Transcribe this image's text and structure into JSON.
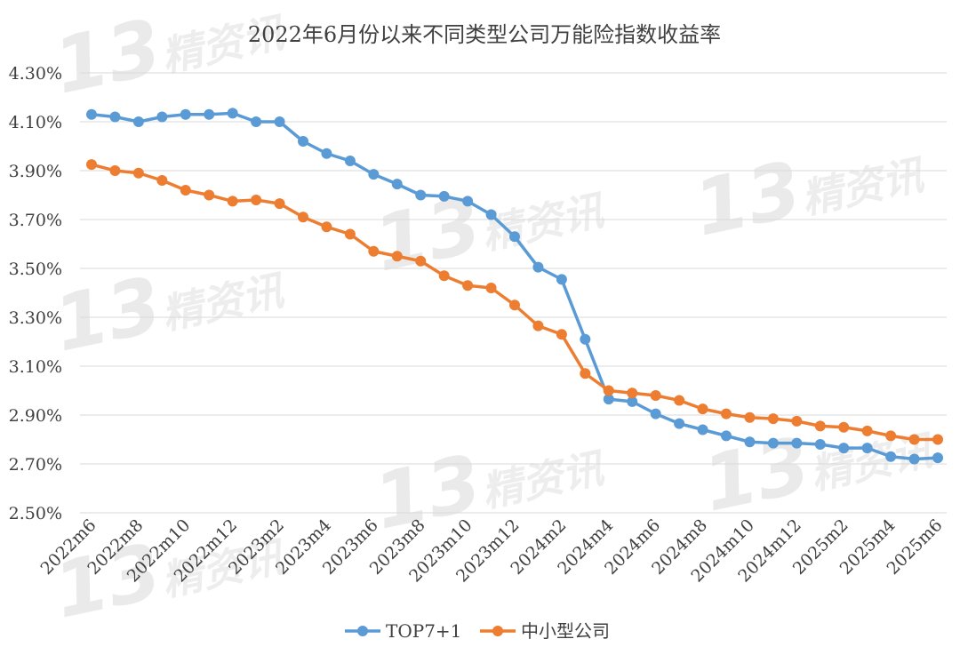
{
  "chart_data": {
    "type": "line",
    "title": "2022年6月份以来不同类型公司万能险指数收益率",
    "x": [
      "2022m6",
      "2022m7",
      "2022m8",
      "2022m9",
      "2022m10",
      "2022m11",
      "2022m12",
      "2023m1",
      "2023m2",
      "2023m3",
      "2023m4",
      "2023m5",
      "2023m6",
      "2023m7",
      "2023m8",
      "2023m9",
      "2023m10",
      "2023m11",
      "2023m12",
      "2024m1",
      "2024m2",
      "2024m3",
      "2024m4",
      "2024m5",
      "2024m6",
      "2024m7",
      "2024m8",
      "2024m9",
      "2024m10",
      "2024m11",
      "2024m12",
      "2025m1",
      "2025m2",
      "2025m3",
      "2025m4",
      "2025m5",
      "2025m6"
    ],
    "xtick_labels": [
      "2022m6",
      "2022m8",
      "2022m10",
      "2022m12",
      "2023m2",
      "2023m4",
      "2023m6",
      "2023m8",
      "2023m10",
      "2023m12",
      "2024m2",
      "2024m4",
      "2024m6",
      "2024m8",
      "2024m10",
      "2024m12",
      "2025m2",
      "2025m4",
      "2025m6"
    ],
    "series": [
      {
        "name": "TOP7+1",
        "color": "#5b9bd5",
        "values": [
          4.13,
          4.12,
          4.1,
          4.12,
          4.13,
          4.13,
          4.135,
          4.1,
          4.1,
          4.02,
          3.97,
          3.94,
          3.885,
          3.845,
          3.8,
          3.795,
          3.775,
          3.72,
          3.63,
          3.505,
          3.455,
          3.21,
          2.965,
          2.955,
          2.905,
          2.865,
          2.84,
          2.815,
          2.79,
          2.785,
          2.785,
          2.78,
          2.765,
          2.765,
          2.73,
          2.72,
          2.725
        ]
      },
      {
        "name": "中小型公司",
        "color": "#ed7d31",
        "values": [
          3.925,
          3.9,
          3.89,
          3.86,
          3.82,
          3.8,
          3.775,
          3.78,
          3.765,
          3.71,
          3.67,
          3.64,
          3.57,
          3.55,
          3.53,
          3.47,
          3.43,
          3.42,
          3.35,
          3.265,
          3.23,
          3.07,
          3.0,
          2.99,
          2.98,
          2.96,
          2.925,
          2.905,
          2.89,
          2.885,
          2.875,
          2.855,
          2.85,
          2.835,
          2.815,
          2.8,
          2.8
        ]
      }
    ],
    "ylim": [
      2.5,
      4.3
    ],
    "yticks": [
      "2.50%",
      "2.70%",
      "2.90%",
      "3.10%",
      "3.30%",
      "3.50%",
      "3.70%",
      "3.90%",
      "4.10%",
      "4.30%"
    ],
    "grid": true,
    "legend": "bottom"
  },
  "watermark": {
    "number": "13",
    "text": "精资讯"
  }
}
